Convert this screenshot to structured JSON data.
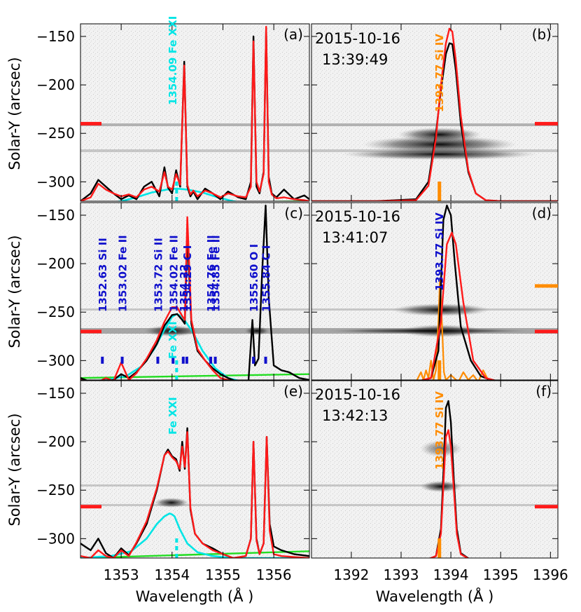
{
  "colors": {
    "observed": "#000000",
    "fit": "#ff1a1a",
    "fe_xxi": "#00e5e5",
    "background": "#22dd22",
    "line_marks": "#1010cc",
    "si_iv": "#ff8c00"
  },
  "axes": {
    "ylabel": "Solar-Y (arcsec)",
    "xlabel": "Wavelength (Å )",
    "ylim": [
      -320,
      -137
    ],
    "y_ticks": [
      -150,
      -200,
      -250,
      -300
    ],
    "fexxi_xlim": [
      1352.2,
      1356.7
    ],
    "fexxi_x_ticks": [
      1353,
      1354,
      1355,
      1356
    ],
    "siiv_xlim": [
      1391.2,
      1396.15
    ],
    "siiv_x_ticks": [
      1392,
      1393,
      1394,
      1395,
      1396
    ]
  },
  "chart_data": [
    {
      "type": "line",
      "panel": "(a)",
      "annotation": "1354.09 Fe XXI",
      "slit_marker_y": -240,
      "series": [
        {
          "kind": "observed",
          "x": [
            1352.2,
            1352.4,
            1352.55,
            1352.7,
            1352.85,
            1353.0,
            1353.15,
            1353.3,
            1353.45,
            1353.6,
            1353.75,
            1353.85,
            1353.92,
            1354.0,
            1354.08,
            1354.16,
            1354.24,
            1354.3,
            1354.36,
            1354.42,
            1354.5,
            1354.65,
            1354.8,
            1354.95,
            1355.1,
            1355.3,
            1355.45,
            1355.55,
            1355.6,
            1355.66,
            1355.72,
            1355.8,
            1355.85,
            1355.9,
            1355.96,
            1356.05,
            1356.2,
            1356.4,
            1356.6,
            1356.7
          ],
          "y": [
            -320,
            -312,
            -298,
            -305,
            -312,
            -318,
            -314,
            -318,
            -305,
            -300,
            -315,
            -285,
            -306,
            -312,
            -288,
            -305,
            -176,
            -305,
            -315,
            -310,
            -318,
            -307,
            -312,
            -318,
            -310,
            -316,
            -318,
            -300,
            -150,
            -305,
            -312,
            -290,
            -142,
            -295,
            -312,
            -316,
            -308,
            -318,
            -314,
            -318
          ]
        },
        {
          "kind": "fit",
          "x": [
            1352.2,
            1352.4,
            1352.55,
            1352.7,
            1352.85,
            1353.0,
            1353.15,
            1353.3,
            1353.45,
            1353.6,
            1353.75,
            1353.85,
            1353.92,
            1354.0,
            1354.08,
            1354.16,
            1354.24,
            1354.3,
            1354.36,
            1354.42,
            1354.5,
            1354.65,
            1354.8,
            1354.95,
            1355.1,
            1355.3,
            1355.45,
            1355.55,
            1355.6,
            1355.66,
            1355.72,
            1355.8,
            1355.85,
            1355.9,
            1355.96,
            1356.05,
            1356.2,
            1356.4,
            1356.6,
            1356.7
          ],
          "y": [
            -320,
            -316,
            -302,
            -308,
            -312,
            -315,
            -313,
            -316,
            -308,
            -305,
            -310,
            -290,
            -305,
            -308,
            -292,
            -303,
            -180,
            -303,
            -313,
            -309,
            -315,
            -309,
            -312,
            -316,
            -312,
            -315,
            -316,
            -305,
            -155,
            -300,
            -310,
            -292,
            -140,
            -300,
            -313,
            -317,
            -316,
            -318,
            -319,
            -320
          ]
        },
        {
          "kind": "fe_xxi",
          "x": [
            1352.2,
            1352.6,
            1353.0,
            1353.3,
            1353.6,
            1353.9,
            1354.09,
            1354.3,
            1354.6,
            1354.9,
            1355.2,
            1355.6,
            1356.0,
            1356.7
          ],
          "y": [
            -324,
            -323,
            -320,
            -316,
            -311,
            -308,
            -307,
            -308,
            -311,
            -316,
            -320,
            -323,
            -324,
            -324
          ]
        },
        {
          "kind": "background",
          "x": [
            1352.2,
            1356.7
          ],
          "y": [
            -323,
            -320
          ]
        }
      ]
    },
    {
      "type": "line",
      "panel": "(b)",
      "date": "2015-10-16",
      "time": "13:39:49",
      "annotation": "1393.77 Si IV",
      "slit_marker_y": -240,
      "series": [
        {
          "kind": "observed",
          "x": [
            1391.2,
            1392.5,
            1393.3,
            1393.55,
            1393.7,
            1393.8,
            1393.9,
            1393.97,
            1394.03,
            1394.1,
            1394.2,
            1394.35,
            1394.5,
            1394.7,
            1395.0,
            1396.15
          ],
          "y": [
            -320,
            -320,
            -318,
            -300,
            -250,
            -205,
            -168,
            -157,
            -158,
            -185,
            -240,
            -290,
            -312,
            -319,
            -320,
            -320
          ]
        },
        {
          "kind": "fit",
          "x": [
            1391.2,
            1392.5,
            1393.3,
            1393.55,
            1393.7,
            1393.8,
            1393.9,
            1393.97,
            1394.03,
            1394.1,
            1394.2,
            1394.35,
            1394.5,
            1394.7,
            1395.0,
            1396.15
          ],
          "y": [
            -320,
            -320,
            -319,
            -304,
            -255,
            -200,
            -157,
            -142,
            -145,
            -175,
            -232,
            -288,
            -312,
            -319,
            -320,
            -320
          ]
        },
        {
          "kind": "si_iv_marker",
          "x": [
            1393.77
          ],
          "y": [
            -320
          ]
        },
        {
          "kind": "background",
          "x": [
            1391.2,
            1396.15
          ],
          "y": [
            -322,
            -322
          ]
        }
      ]
    },
    {
      "type": "line",
      "panel": "(c)",
      "annotation": "Fe XXI",
      "slit_marker_y": -270,
      "line_ids": [
        {
          "label": "1352.63 Si II",
          "wavelength": 1352.63
        },
        {
          "label": "1353.02 Fe II",
          "wavelength": 1353.02
        },
        {
          "label": "1353.72 Si II",
          "wavelength": 1353.72
        },
        {
          "label": "1354.02 Fe II",
          "wavelength": 1354.02
        },
        {
          "label": "1354.22",
          "wavelength": 1354.22
        },
        {
          "label": "1354.29 C I",
          "wavelength": 1354.29
        },
        {
          "label": "1354.76 Fe II",
          "wavelength": 1354.76
        },
        {
          "label": "1354.85 Fe II",
          "wavelength": 1354.85
        },
        {
          "label": "1355.60 O I",
          "wavelength": 1355.6
        },
        {
          "label": "1355.84 C I",
          "wavelength": 1355.84
        }
      ],
      "series": [
        {
          "kind": "observed",
          "x": [
            1352.2,
            1352.4,
            1352.55,
            1352.7,
            1352.85,
            1353.0,
            1353.15,
            1353.3,
            1353.5,
            1353.7,
            1353.85,
            1354.0,
            1354.1,
            1354.2,
            1354.25,
            1354.3,
            1354.38,
            1354.5,
            1354.65,
            1354.8,
            1354.95,
            1355.1,
            1355.3,
            1355.5,
            1355.58,
            1355.63,
            1355.7,
            1355.77,
            1355.84,
            1355.9,
            1356.0,
            1356.15,
            1356.3,
            1356.5,
            1356.7
          ],
          "y": [
            -318,
            -322,
            -323,
            -322,
            -320,
            -314,
            -318,
            -312,
            -300,
            -283,
            -264,
            -253,
            -252,
            -258,
            -262,
            -170,
            -262,
            -290,
            -300,
            -308,
            -314,
            -318,
            -322,
            -323,
            -258,
            -305,
            -298,
            -210,
            -140,
            -235,
            -305,
            -310,
            -312,
            -318,
            -320
          ]
        },
        {
          "kind": "fit",
          "x": [
            1352.2,
            1352.4,
            1352.55,
            1352.7,
            1352.85,
            1353.0,
            1353.15,
            1353.3,
            1353.5,
            1353.7,
            1353.85,
            1354.0,
            1354.1,
            1354.2,
            1354.25,
            1354.3,
            1354.38,
            1354.5,
            1354.65,
            1354.8,
            1354.95,
            1355.1,
            1355.3,
            1355.5
          ],
          "y": [
            -320,
            -322,
            -322,
            -318,
            -321,
            -302,
            -320,
            -313,
            -298,
            -279,
            -260,
            -245,
            -245,
            -254,
            -258,
            -152,
            -258,
            -288,
            -300,
            -310,
            -318,
            -320,
            -322,
            -322
          ]
        },
        {
          "kind": "fe_xxi",
          "x": [
            1352.2,
            1352.7,
            1353.1,
            1353.4,
            1353.65,
            1353.85,
            1354.0,
            1354.09,
            1354.2,
            1354.4,
            1354.6,
            1354.85,
            1355.1,
            1355.4,
            1356.7
          ],
          "y": [
            -322,
            -320,
            -316,
            -306,
            -288,
            -268,
            -255,
            -252,
            -255,
            -270,
            -290,
            -308,
            -318,
            -322,
            -322
          ]
        },
        {
          "kind": "background",
          "x": [
            1352.2,
            1356.7
          ],
          "y": [
            -318,
            -314
          ]
        }
      ]
    },
    {
      "type": "line",
      "panel": "(d)",
      "date": "2015-10-16",
      "time": "13:41:07",
      "annotation": "1393.77 Si IV",
      "slit_marker_y": -270,
      "secondary_marker_y": -223,
      "series": [
        {
          "kind": "observed",
          "x": [
            1391.2,
            1393.3,
            1393.6,
            1393.75,
            1393.85,
            1393.92,
            1394.0,
            1394.08,
            1394.2,
            1394.4,
            1394.6,
            1394.85,
            1395.0,
            1396.15
          ],
          "y": [
            -322,
            -322,
            -318,
            -290,
            -155,
            -140,
            -150,
            -200,
            -265,
            -300,
            -316,
            -321,
            -322,
            -322
          ]
        },
        {
          "kind": "fit",
          "x": [
            1391.2,
            1393.3,
            1393.6,
            1393.8,
            1393.92,
            1394.02,
            1394.1,
            1394.25,
            1394.45,
            1394.7,
            1395.0,
            1396.15
          ],
          "y": [
            -322,
            -322,
            -318,
            -260,
            -180,
            -168,
            -180,
            -240,
            -300,
            -318,
            -322,
            -322
          ]
        },
        {
          "kind": "si_iv",
          "x": [
            1393.3,
            1393.4,
            1393.45,
            1393.5,
            1393.55,
            1393.6,
            1393.65,
            1393.7,
            1393.75,
            1393.78,
            1393.82,
            1393.86,
            1393.9,
            1394.0,
            1394.15,
            1394.25,
            1394.35,
            1394.45,
            1394.55,
            1394.65,
            1394.75,
            1394.85
          ],
          "y": [
            -322,
            -312,
            -320,
            -310,
            -318,
            -300,
            -320,
            -310,
            -260,
            -215,
            -260,
            -312,
            -320,
            -315,
            -322,
            -312,
            -320,
            -315,
            -322,
            -310,
            -320,
            -322
          ]
        },
        {
          "kind": "background",
          "x": [
            1391.2,
            1396.15
          ],
          "y": [
            -322,
            -322
          ]
        }
      ]
    },
    {
      "type": "line",
      "panel": "(e)",
      "annotation": "Fe XXI",
      "slit_marker_y": -267,
      "series": [
        {
          "kind": "observed",
          "x": [
            1352.2,
            1352.4,
            1352.55,
            1352.7,
            1352.85,
            1353.0,
            1353.15,
            1353.3,
            1353.5,
            1353.7,
            1353.85,
            1353.92,
            1354.0,
            1354.08,
            1354.15,
            1354.2,
            1354.25,
            1354.3,
            1354.36,
            1354.45,
            1354.6,
            1354.8,
            1355.0,
            1355.2,
            1355.45,
            1355.55,
            1355.6,
            1355.66,
            1355.72,
            1355.8,
            1355.86,
            1355.92,
            1356.0,
            1356.15,
            1356.4,
            1356.7
          ],
          "y": [
            -305,
            -312,
            -300,
            -315,
            -320,
            -310,
            -317,
            -305,
            -285,
            -250,
            -214,
            -208,
            -215,
            -218,
            -230,
            -200,
            -228,
            -186,
            -270,
            -295,
            -305,
            -310,
            -316,
            -320,
            -318,
            -300,
            -200,
            -300,
            -316,
            -305,
            -195,
            -285,
            -308,
            -312,
            -316,
            -318
          ]
        },
        {
          "kind": "fit",
          "x": [
            1352.2,
            1352.4,
            1352.55,
            1352.7,
            1352.85,
            1353.0,
            1353.15,
            1353.3,
            1353.5,
            1353.7,
            1353.85,
            1353.92,
            1354.0,
            1354.08,
            1354.15,
            1354.2,
            1354.25,
            1354.3,
            1354.36,
            1354.45,
            1354.6,
            1354.8,
            1355.0,
            1355.2,
            1355.45,
            1355.55,
            1355.6,
            1355.66,
            1355.72,
            1355.8,
            1355.86,
            1355.92,
            1356.0,
            1356.15,
            1356.4,
            1356.7
          ],
          "y": [
            -318,
            -320,
            -312,
            -318,
            -320,
            -312,
            -318,
            -304,
            -282,
            -248,
            -214,
            -210,
            -216,
            -220,
            -228,
            -205,
            -226,
            -190,
            -268,
            -295,
            -305,
            -312,
            -316,
            -320,
            -318,
            -300,
            -200,
            -302,
            -316,
            -305,
            -195,
            -292,
            -316,
            -318,
            -319,
            -320
          ]
        },
        {
          "kind": "fe_xxi",
          "x": [
            1352.2,
            1352.8,
            1353.2,
            1353.5,
            1353.7,
            1353.85,
            1353.95,
            1354.0,
            1354.05,
            1354.15,
            1354.3,
            1354.5,
            1354.8,
            1355.2,
            1356.7
          ],
          "y": [
            -320,
            -318,
            -313,
            -300,
            -285,
            -277,
            -274,
            -275,
            -277,
            -290,
            -305,
            -314,
            -318,
            -320,
            -320
          ]
        },
        {
          "kind": "background",
          "x": [
            1352.2,
            1356.7
          ],
          "y": [
            -320,
            -313
          ]
        }
      ]
    },
    {
      "type": "line",
      "panel": "(f)",
      "date": "2015-10-16",
      "time": "13:42:13",
      "annotation": "1393.77 Si IV",
      "slit_marker_y": -267,
      "series": [
        {
          "kind": "observed",
          "x": [
            1391.2,
            1393.5,
            1393.7,
            1393.8,
            1393.86,
            1393.9,
            1393.95,
            1394.0,
            1394.06,
            1394.12,
            1394.2,
            1394.4,
            1396.15
          ],
          "y": [
            -322,
            -322,
            -318,
            -290,
            -220,
            -165,
            -158,
            -180,
            -240,
            -290,
            -315,
            -322,
            -322
          ]
        },
        {
          "kind": "fit",
          "x": [
            1391.2,
            1393.5,
            1393.7,
            1393.8,
            1393.86,
            1393.9,
            1393.95,
            1394.0,
            1394.06,
            1394.12,
            1394.2,
            1394.4,
            1396.15
          ],
          "y": [
            -322,
            -322,
            -318,
            -295,
            -235,
            -195,
            -188,
            -205,
            -250,
            -295,
            -316,
            -322,
            -322
          ]
        },
        {
          "kind": "si_iv_marker",
          "x": [
            1393.77
          ],
          "y": [
            -320
          ]
        },
        {
          "kind": "background",
          "x": [
            1391.2,
            1396.15
          ],
          "y": [
            -322,
            -322
          ]
        }
      ]
    }
  ]
}
